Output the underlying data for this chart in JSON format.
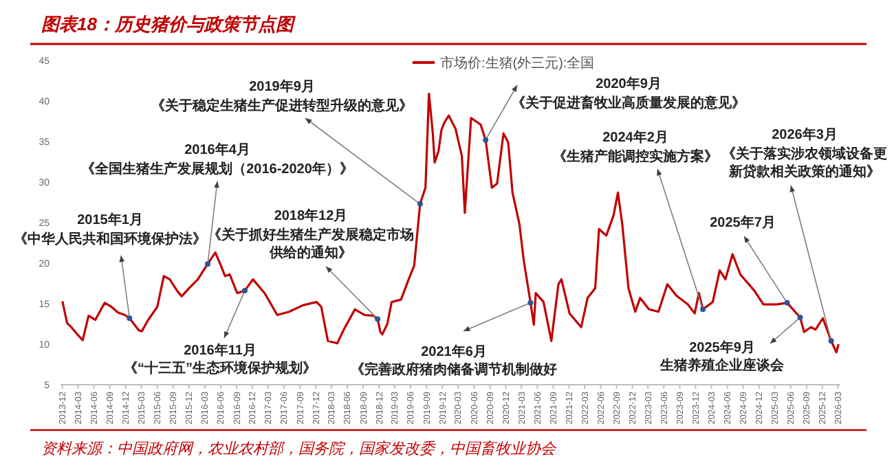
{
  "chart_data": {
    "type": "line",
    "title": "图表18：历史猪价与政策节点图",
    "legend": "top",
    "xlim": [
      "2013-11-20",
      "2026-03-15"
    ],
    "ylim": [
      5,
      45
    ],
    "yticks": [
      5,
      10,
      15,
      20,
      25,
      30,
      35,
      40,
      45
    ],
    "xticks": [
      "2013-12",
      "2014-03",
      "2014-06",
      "2014-09",
      "2014-12",
      "2015-03",
      "2015-06",
      "2015-09",
      "2015-12",
      "2016-03",
      "2016-06",
      "2016-09",
      "2016-12",
      "2017-03",
      "2017-06",
      "2017-09",
      "2017-12",
      "2018-03",
      "2018-06",
      "2018-09",
      "2018-12",
      "2019-03",
      "2019-06",
      "2019-09",
      "2019-12",
      "2020-03",
      "2020-06",
      "2020-09",
      "2020-12",
      "2021-03",
      "2021-06",
      "2021-09",
      "2021-12",
      "2022-03",
      "2022-06",
      "2022-09",
      "2022-12",
      "2023-03",
      "2023-06",
      "2023-09",
      "2023-12",
      "2024-03",
      "2024-06",
      "2024-09",
      "2024-12",
      "2025-03",
      "2025-06",
      "2025-09",
      "2025-12",
      "2026-03"
    ],
    "x": [
      "2013-12-01",
      "2013-12-28",
      "2014-01-21",
      "2014-02-25",
      "2014-03-28",
      "2014-05-01",
      "2014-06-09",
      "2014-08-02",
      "2014-09-10",
      "2014-10-18",
      "2014-11-26",
      "2014-12-23",
      "2015-02-15",
      "2015-03-04",
      "2015-04-07",
      "2015-06-01",
      "2015-07-09",
      "2015-08-12",
      "2015-09-23",
      "2015-10-20",
      "2015-12-01",
      "2016-01-21",
      "2016-03-18",
      "2016-05-01",
      "2016-06-02",
      "2016-06-26",
      "2016-07-23",
      "2016-09-04",
      "2016-10-18",
      "2016-12-04",
      "2017-02-09",
      "2017-04-23",
      "2017-07-01",
      "2017-09-18",
      "2017-12-06",
      "2018-01-02",
      "2018-02-09",
      "2018-04-04",
      "2018-05-12",
      "2018-07-15",
      "2018-09-09",
      "2018-11-01",
      "2018-11-23",
      "2018-12-09",
      "2018-12-20",
      "2019-01-18",
      "2019-02-12",
      "2019-04-07",
      "2019-05-21",
      "2019-06-22",
      "2019-07-26",
      "2019-08-26",
      "2019-09-15",
      "2019-10-07",
      "2019-10-18",
      "2019-11-09",
      "2019-11-26",
      "2019-12-12",
      "2020-01-07",
      "2020-02-15",
      "2020-03-23",
      "2020-04-09",
      "2020-05-15",
      "2020-07-09",
      "2020-08-07",
      "2020-09-12",
      "2020-10-12",
      "2020-11-18",
      "2020-12-15",
      "2021-01-09",
      "2021-02-18",
      "2021-03-15",
      "2021-04-23",
      "2021-05-12",
      "2021-05-23",
      "2021-07-07",
      "2021-08-21",
      "2021-10-01",
      "2021-10-18",
      "2021-12-04",
      "2022-02-09",
      "2022-03-18",
      "2022-05-01",
      "2022-05-23",
      "2022-07-04",
      "2022-08-15",
      "2022-09-09",
      "2022-10-04",
      "2022-11-09",
      "2022-12-18",
      "2023-01-15",
      "2023-03-07",
      "2023-05-01",
      "2023-06-21",
      "2023-08-12",
      "2023-10-18",
      "2023-11-26",
      "2023-12-20",
      "2024-01-12",
      "2024-03-09",
      "2024-04-18",
      "2024-05-21",
      "2024-07-01",
      "2024-08-15",
      "2024-11-04",
      "2024-12-26",
      "2025-03-12",
      "2025-05-12",
      "2025-07-26",
      "2025-08-18",
      "2025-09-26",
      "2025-10-23",
      "2025-12-04",
      "2026-01-21",
      "2026-02-20",
      "2026-03-04"
    ],
    "series": [
      {
        "name": "市场价:生猪(外三元):全国",
        "color": "#c00000",
        "values": [
          15.3,
          12.6,
          12.1,
          11.2,
          10.5,
          13.5,
          13.0,
          15.1,
          14.6,
          13.9,
          13.6,
          13.2,
          11.7,
          11.6,
          12.9,
          14.6,
          18.4,
          18.0,
          16.6,
          15.9,
          16.9,
          18.0,
          19.9,
          21.3,
          19.7,
          18.4,
          18.6,
          16.3,
          16.6,
          18.0,
          16.3,
          13.6,
          14.0,
          14.8,
          15.2,
          14.6,
          10.4,
          10.1,
          11.8,
          14.3,
          13.6,
          13.5,
          13.1,
          11.5,
          11.2,
          12.5,
          15.2,
          15.5,
          18.0,
          19.7,
          27.3,
          29.3,
          40.9,
          36.1,
          32.4,
          33.8,
          36.4,
          37.3,
          38.2,
          36.6,
          33.2,
          26.2,
          37.9,
          37.1,
          35.2,
          29.3,
          29.8,
          36.0,
          34.9,
          28.7,
          24.8,
          20.3,
          15.1,
          12.4,
          16.3,
          15.2,
          10.4,
          17.4,
          18.0,
          13.8,
          12.1,
          15.7,
          16.9,
          24.2,
          23.4,
          25.9,
          28.7,
          24.8,
          16.9,
          14.0,
          15.7,
          14.3,
          14.0,
          17.4,
          16.0,
          14.9,
          13.8,
          16.3,
          14.3,
          15.2,
          19.1,
          18.0,
          21.1,
          18.6,
          16.6,
          14.9,
          14.9,
          15.1,
          13.3,
          11.5,
          12.1,
          11.8,
          13.2,
          10.4,
          9.0,
          10.0
        ]
      }
    ],
    "annotations": [
      "2015年1月",
      {
        "text": "《中华人民共和国环境保护法》",
        "x": "2014-12-23",
        "y": 13.2
      },
      "2016年4月",
      {
        "text": "《全国生猪生产发展规划（2016-2020年）》",
        "x": "2016-03-18",
        "y": 19.9
      },
      {
        "text": "2016年11月",
        "x": "2016-10-18",
        "y": 16.6
      },
      "《“十三五”生态环境保护规划》",
      "2018年12月",
      {
        "text": "《关于抓好生猪生产发展稳定市场供给的通知》",
        "x": "2018-11-23",
        "y": 13.1
      },
      "2019年9月",
      {
        "text": "《关于稳定生猪生产促进转型升级的意见》",
        "x": "2019-07-26",
        "y": 27.3
      },
      "2020年9月",
      {
        "text": "《关于促进畜牧业高质量发展的意见》",
        "x": "2020-08-07",
        "y": 35.2
      },
      {
        "text": "2021年6月",
        "x": "2021-04-23",
        "y": 15.1
      },
      "《完善政府猪肉储备调节机制做好",
      "2024年2月",
      {
        "text": "《生猪产能调控实施方案》",
        "x": "2024-01-12",
        "y": 14.3
      },
      {
        "text": "2025年7月",
        "x": "2025-05-12",
        "y": 15.1
      },
      {
        "text": "2025年9月",
        "x": "2025-07-26",
        "y": 13.3
      },
      "生猪养殖企业座谈会",
      "2026年3月",
      {
        "text": "《关于落实涉农领域设备更新贷款相关政策的通知》",
        "x": "2026-01-21",
        "y": 10.4
      },
      "资料来源：中国政府网，农业农村部，国务院，国家发改委，中国畜牧业协会"
    ]
  }
}
